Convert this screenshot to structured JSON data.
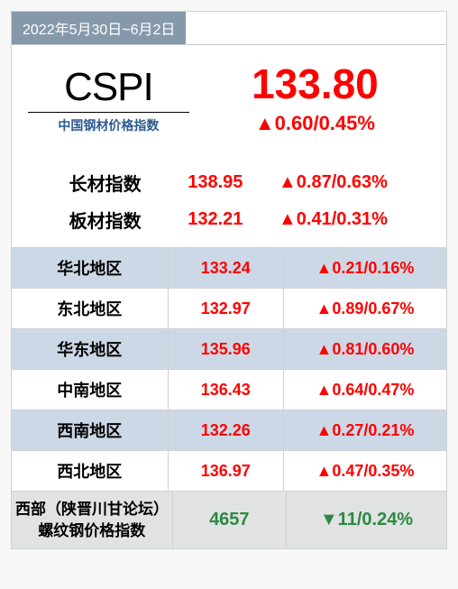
{
  "date_range": "2022年5月30日~6月2日",
  "logo": {
    "text": "CSPI",
    "subtitle": "中国钢材价格指数"
  },
  "main_index": {
    "value": "133.80",
    "change": "▲0.60/0.45%"
  },
  "sub_indices": [
    {
      "label": "长材指数",
      "value": "138.95",
      "change": "▲0.87/0.63%"
    },
    {
      "label": "板材指数",
      "value": "132.21",
      "change": "▲0.41/0.31%"
    }
  ],
  "regions": [
    {
      "label": "华北地区",
      "value": "133.24",
      "change": "▲0.21/0.16%",
      "shaded": true
    },
    {
      "label": "东北地区",
      "value": "132.97",
      "change": "▲0.89/0.67%",
      "shaded": false
    },
    {
      "label": "华东地区",
      "value": "135.96",
      "change": "▲0.81/0.60%",
      "shaded": true
    },
    {
      "label": "中南地区",
      "value": "136.43",
      "change": "▲0.64/0.47%",
      "shaded": false
    },
    {
      "label": "西南地区",
      "value": "132.26",
      "change": "▲0.27/0.21%",
      "shaded": true
    },
    {
      "label": "西北地区",
      "value": "136.97",
      "change": "▲0.47/0.35%",
      "shaded": false
    }
  ],
  "footer": {
    "label_line1": "西部（陕晋川甘论坛）",
    "label_line2": "螺纹钢价格指数",
    "value": "4657",
    "change": "▼11/0.24%"
  },
  "colors": {
    "up": "#ff0000",
    "down": "#2b8a3e",
    "banner_bg": "#8699aa",
    "shaded_row": "#cdd8e6",
    "footer_bg": "#e0e2e4",
    "subtitle": "#2e5a8e"
  }
}
